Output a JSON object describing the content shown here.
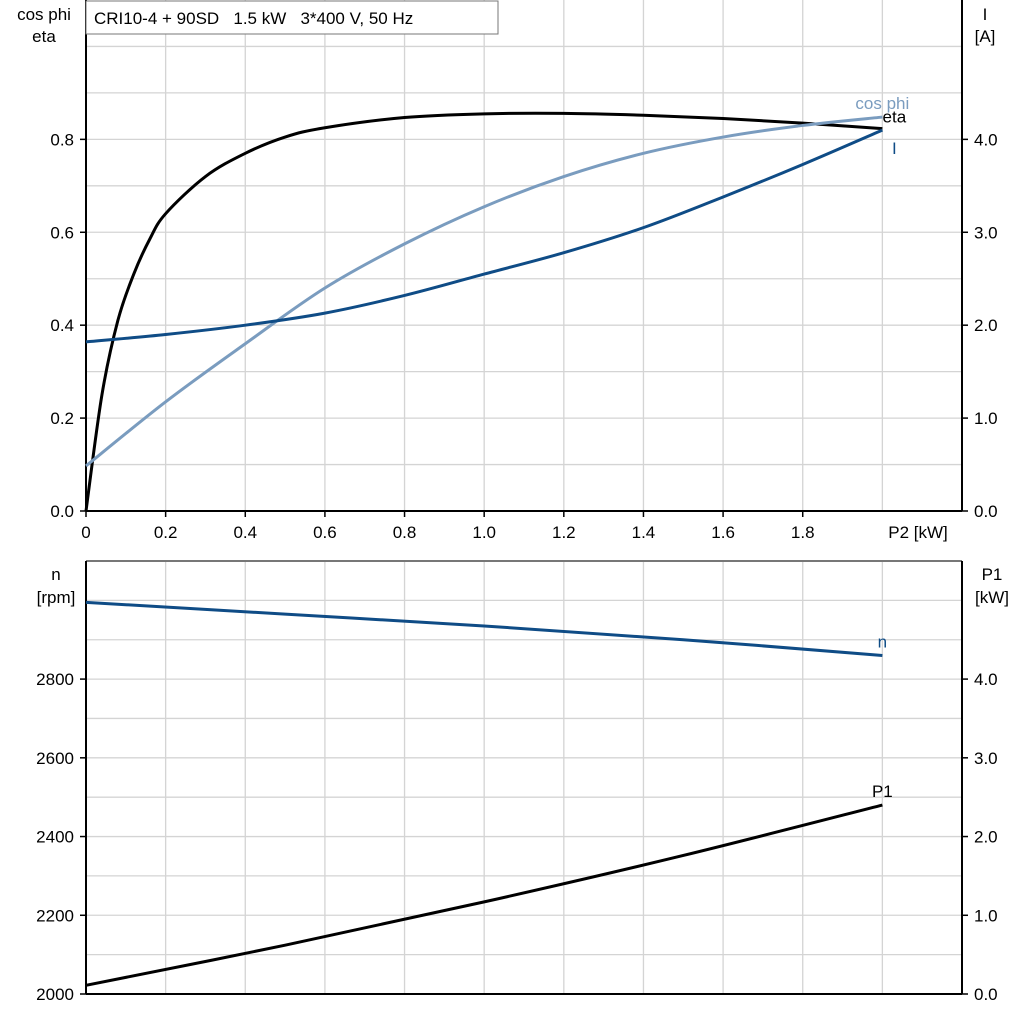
{
  "chart_data": [
    {
      "type": "line",
      "title": "CRI10-4 + 90SD   1.5 kW   3*400 V, 50 Hz",
      "xlabel": "P2 [kW]",
      "ylabel_left": [
        "cos phi",
        "eta"
      ],
      "ylabel_right": [
        "I",
        "[A]"
      ],
      "xlim": [
        0,
        2.2
      ],
      "ylim_left": [
        0,
        1.1
      ],
      "ylim_right": [
        0,
        5.5
      ],
      "x_ticks": [
        "0",
        "0.2",
        "0.4",
        "0.6",
        "0.8",
        "1.0",
        "1.2",
        "1.4",
        "1.6",
        "1.8"
      ],
      "y_ticks_left": [
        "0.0",
        "0.2",
        "0.4",
        "0.6",
        "0.8"
      ],
      "y_ticks_right": [
        "0.0",
        "1.0",
        "2.0",
        "3.0",
        "4.0"
      ],
      "grid": true,
      "series": [
        {
          "name": "eta",
          "axis": "left",
          "color": "#000000",
          "x": [
            0,
            0.04,
            0.08,
            0.12,
            0.16,
            0.2,
            0.3,
            0.4,
            0.5,
            0.6,
            0.8,
            1.0,
            1.2,
            1.4,
            1.6,
            1.8,
            2.0
          ],
          "y": [
            0,
            0.25,
            0.41,
            0.51,
            0.585,
            0.64,
            0.72,
            0.77,
            0.805,
            0.825,
            0.847,
            0.855,
            0.856,
            0.852,
            0.845,
            0.835,
            0.823
          ]
        },
        {
          "name": "cos phi",
          "axis": "left",
          "color": "#7a9cbf",
          "x": [
            0,
            0.2,
            0.4,
            0.6,
            0.8,
            1.0,
            1.2,
            1.4,
            1.6,
            1.8,
            2.0
          ],
          "y": [
            0.097,
            0.235,
            0.36,
            0.48,
            0.575,
            0.655,
            0.72,
            0.77,
            0.805,
            0.83,
            0.848
          ]
        },
        {
          "name": "I",
          "axis": "right",
          "color": "#0f4c86",
          "x": [
            0,
            0.2,
            0.4,
            0.6,
            0.8,
            1.0,
            1.2,
            1.4,
            1.6,
            1.8,
            2.0
          ],
          "y": [
            1.82,
            1.9,
            2.0,
            2.13,
            2.32,
            2.55,
            2.78,
            3.05,
            3.38,
            3.73,
            4.1
          ]
        }
      ]
    },
    {
      "type": "line",
      "ylabel_left": [
        "n",
        "[rpm]"
      ],
      "ylabel_right": [
        "P1",
        "[kW]"
      ],
      "xlim": [
        0,
        2.2
      ],
      "ylim_left": [
        2000,
        3100
      ],
      "ylim_right": [
        0,
        5.5
      ],
      "y_ticks_left": [
        "2000",
        "2200",
        "2400",
        "2600",
        "2800"
      ],
      "y_ticks_right": [
        "0.0",
        "1.0",
        "2.0",
        "3.0",
        "4.0"
      ],
      "grid": true,
      "series": [
        {
          "name": "n",
          "axis": "left",
          "color": "#0f4c86",
          "x": [
            0,
            0.5,
            1.0,
            1.5,
            2.0
          ],
          "y": [
            2995,
            2965,
            2935,
            2900,
            2860
          ]
        },
        {
          "name": "P1",
          "axis": "right",
          "color": "#000000",
          "x": [
            0,
            0.5,
            1.0,
            1.5,
            2.0
          ],
          "y": [
            0.11,
            0.62,
            1.17,
            1.76,
            2.4
          ]
        }
      ]
    }
  ]
}
